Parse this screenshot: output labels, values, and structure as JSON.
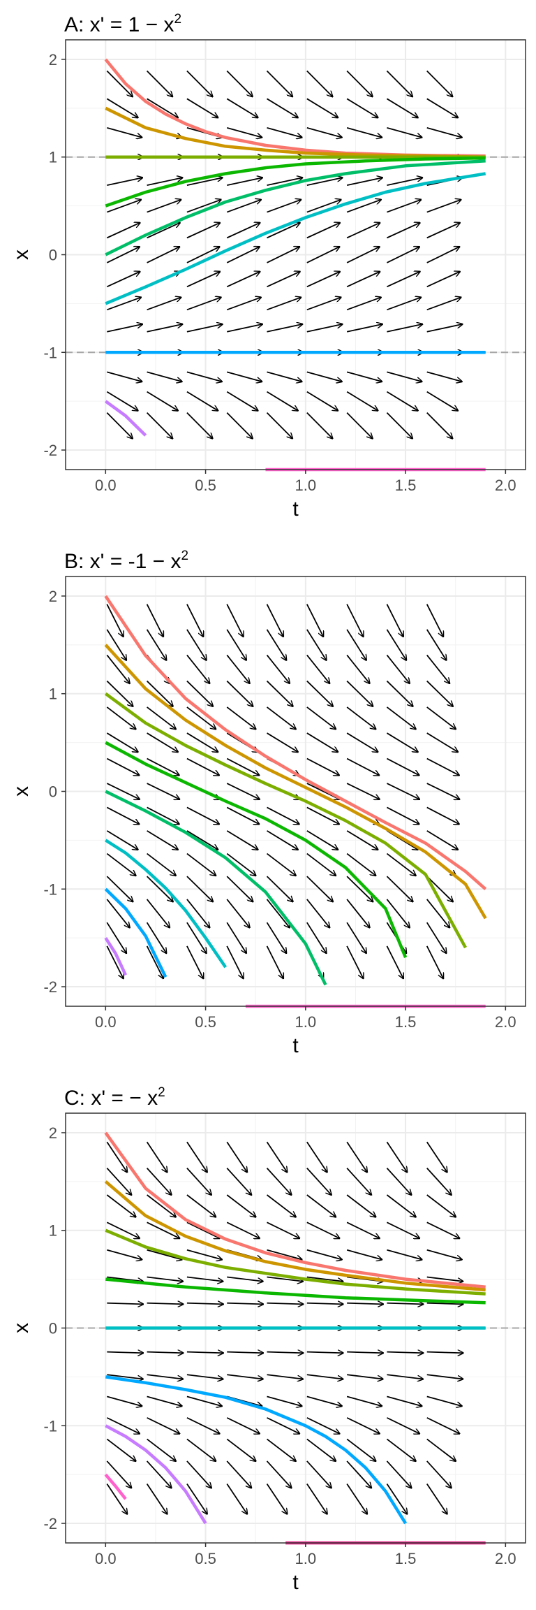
{
  "chart_data": [
    {
      "type": "line",
      "subtype": "direction-field",
      "title_base": "A: x' = 1 − x",
      "title_sup": "2",
      "xlabel": "t",
      "ylabel": "x",
      "xlim": [
        -0.2,
        2.1
      ],
      "ylim": [
        -2.2,
        2.2
      ],
      "xticks": [
        0,
        0.5,
        1,
        1.5,
        2
      ],
      "xtick_labels": [
        "0.0",
        "0.5",
        "1.0",
        "1.5",
        "2.0"
      ],
      "yticks": [
        -2,
        -1,
        0,
        1,
        2
      ],
      "ytick_labels": [
        "-2",
        "-1",
        "0",
        "1",
        "2"
      ],
      "grid": true,
      "field": "1-x^2",
      "equilibria": [
        1,
        -1
      ],
      "series": [
        {
          "color": "#F8766D",
          "x": [
            0,
            0.1,
            0.2,
            0.3,
            0.4,
            0.5,
            0.6,
            0.8,
            1.0,
            1.2,
            1.5,
            1.9
          ],
          "y": [
            2,
            1.75,
            1.57,
            1.44,
            1.34,
            1.26,
            1.2,
            1.12,
            1.07,
            1.04,
            1.02,
            1.01
          ]
        },
        {
          "color": "#CD9600",
          "x": [
            0,
            0.2,
            0.4,
            0.6,
            0.8,
            1.0,
            1.3,
            1.6,
            1.9
          ],
          "y": [
            1.5,
            1.3,
            1.19,
            1.11,
            1.07,
            1.04,
            1.02,
            1.01,
            1.0
          ]
        },
        {
          "color": "#7CAE00",
          "x": [
            0,
            1.9
          ],
          "y": [
            1,
            1
          ]
        },
        {
          "color": "#0CB702",
          "x": [
            0,
            0.2,
            0.4,
            0.6,
            0.8,
            1.0,
            1.3,
            1.6,
            1.9
          ],
          "y": [
            0.5,
            0.64,
            0.75,
            0.83,
            0.89,
            0.93,
            0.96,
            0.98,
            0.99
          ]
        },
        {
          "color": "#00BE67",
          "x": [
            0,
            0.2,
            0.4,
            0.6,
            0.8,
            1.0,
            1.2,
            1.5,
            1.9
          ],
          "y": [
            0,
            0.2,
            0.38,
            0.54,
            0.66,
            0.76,
            0.83,
            0.91,
            0.96
          ]
        },
        {
          "color": "#00BFC4",
          "x": [
            0,
            0.2,
            0.4,
            0.6,
            0.8,
            1.0,
            1.2,
            1.4,
            1.6,
            1.9
          ],
          "y": [
            -0.5,
            -0.33,
            -0.15,
            0.04,
            0.22,
            0.38,
            0.52,
            0.64,
            0.73,
            0.83
          ]
        },
        {
          "color": "#00A9FF",
          "x": [
            0,
            1.9
          ],
          "y": [
            -1,
            -1
          ]
        },
        {
          "color": "#C77CFF",
          "x": [
            0,
            0.1,
            0.2
          ],
          "y": [
            -1.5,
            -1.65,
            -1.85
          ]
        },
        {
          "color": "#FF61CC",
          "x": [
            0.8,
            1.9
          ],
          "y": [
            -2.2,
            -2.2
          ]
        }
      ]
    },
    {
      "type": "line",
      "subtype": "direction-field",
      "title_base": "B: x' = -1 − x",
      "title_sup": "2",
      "xlabel": "t",
      "ylabel": "x",
      "xlim": [
        -0.2,
        2.1
      ],
      "ylim": [
        -2.2,
        2.2
      ],
      "xticks": [
        0,
        0.5,
        1,
        1.5,
        2
      ],
      "xtick_labels": [
        "0.0",
        "0.5",
        "1.0",
        "1.5",
        "2.0"
      ],
      "yticks": [
        -2,
        -1,
        0,
        1,
        2
      ],
      "ytick_labels": [
        "-2",
        "-1",
        "0",
        "1",
        "2"
      ],
      "grid": true,
      "field": "-1-x^2",
      "equilibria": [],
      "series": [
        {
          "color": "#F8766D",
          "x": [
            0,
            0.2,
            0.4,
            0.6,
            0.8,
            1.0,
            1.2,
            1.4,
            1.6,
            1.8,
            1.9
          ],
          "y": [
            2,
            1.39,
            0.95,
            0.63,
            0.36,
            0.12,
            -0.1,
            -0.32,
            -0.53,
            -0.82,
            -1.0
          ]
        },
        {
          "color": "#CD9600",
          "x": [
            0,
            0.2,
            0.4,
            0.6,
            0.8,
            1.0,
            1.2,
            1.4,
            1.6,
            1.8,
            1.9
          ],
          "y": [
            1.5,
            1.05,
            0.73,
            0.47,
            0.24,
            0.04,
            -0.16,
            -0.38,
            -0.62,
            -0.95,
            -1.3
          ]
        },
        {
          "color": "#7CAE00",
          "x": [
            0,
            0.2,
            0.4,
            0.6,
            0.8,
            1.0,
            1.2,
            1.4,
            1.6,
            1.8
          ],
          "y": [
            1,
            0.7,
            0.47,
            0.27,
            0.08,
            -0.1,
            -0.3,
            -0.53,
            -0.85,
            -1.6
          ]
        },
        {
          "color": "#0CB702",
          "x": [
            0,
            0.2,
            0.4,
            0.6,
            0.8,
            1.0,
            1.2,
            1.4,
            1.5
          ],
          "y": [
            0.5,
            0.28,
            0.09,
            -0.1,
            -0.28,
            -0.5,
            -0.78,
            -1.2,
            -1.7
          ]
        },
        {
          "color": "#00BE67",
          "x": [
            0,
            0.2,
            0.4,
            0.6,
            0.8,
            1.0,
            1.1
          ],
          "y": [
            0,
            -0.2,
            -0.42,
            -0.68,
            -1.03,
            -1.56,
            -1.98
          ]
        },
        {
          "color": "#00BFC4",
          "x": [
            0,
            0.1,
            0.2,
            0.3,
            0.4,
            0.5,
            0.6
          ],
          "y": [
            -0.5,
            -0.63,
            -0.8,
            -0.99,
            -1.22,
            -1.5,
            -1.8
          ]
        },
        {
          "color": "#00A9FF",
          "x": [
            0,
            0.1,
            0.2,
            0.3
          ],
          "y": [
            -1,
            -1.2,
            -1.48,
            -1.9
          ]
        },
        {
          "color": "#C77CFF",
          "x": [
            0,
            0.05,
            0.1
          ],
          "y": [
            -1.5,
            -1.66,
            -1.88
          ]
        },
        {
          "color": "#FF61CC",
          "x": [
            0.7,
            1.9
          ],
          "y": [
            -2.2,
            -2.2
          ]
        }
      ]
    },
    {
      "type": "line",
      "subtype": "direction-field",
      "title_base": "C: x' = − x",
      "title_sup": "2",
      "xlabel": "t",
      "ylabel": "x",
      "xlim": [
        -0.2,
        2.1
      ],
      "ylim": [
        -2.2,
        2.2
      ],
      "xticks": [
        0,
        0.5,
        1,
        1.5,
        2
      ],
      "xtick_labels": [
        "0.0",
        "0.5",
        "1.0",
        "1.5",
        "2.0"
      ],
      "yticks": [
        -2,
        -1,
        0,
        1,
        2
      ],
      "ytick_labels": [
        "-2",
        "-1",
        "0",
        "1",
        "2"
      ],
      "grid": true,
      "field": "-x^2",
      "equilibria": [
        0
      ],
      "series": [
        {
          "color": "#F8766D",
          "x": [
            0,
            0.2,
            0.4,
            0.6,
            0.8,
            1.0,
            1.2,
            1.5,
            1.9
          ],
          "y": [
            2,
            1.43,
            1.11,
            0.91,
            0.77,
            0.67,
            0.59,
            0.5,
            0.42
          ]
        },
        {
          "color": "#CD9600",
          "x": [
            0,
            0.2,
            0.4,
            0.6,
            0.8,
            1.0,
            1.2,
            1.5,
            1.9
          ],
          "y": [
            1.5,
            1.15,
            0.94,
            0.79,
            0.68,
            0.6,
            0.54,
            0.46,
            0.39
          ]
        },
        {
          "color": "#7CAE00",
          "x": [
            0,
            0.2,
            0.4,
            0.6,
            0.8,
            1.0,
            1.2,
            1.5,
            1.9
          ],
          "y": [
            1,
            0.83,
            0.71,
            0.62,
            0.56,
            0.5,
            0.45,
            0.4,
            0.35
          ]
        },
        {
          "color": "#0CB702",
          "x": [
            0,
            0.4,
            0.8,
            1.2,
            1.6,
            1.9
          ],
          "y": [
            0.5,
            0.42,
            0.36,
            0.31,
            0.28,
            0.26
          ]
        },
        {
          "color": "#00BFC4",
          "x": [
            0,
            1.9
          ],
          "y": [
            0,
            0
          ]
        },
        {
          "color": "#00A9FF",
          "x": [
            0,
            0.2,
            0.4,
            0.6,
            0.8,
            1.0,
            1.1,
            1.2,
            1.3,
            1.4,
            1.5
          ],
          "y": [
            -0.5,
            -0.56,
            -0.63,
            -0.71,
            -0.83,
            -1.0,
            -1.11,
            -1.25,
            -1.43,
            -1.67,
            -2.0
          ]
        },
        {
          "color": "#C77CFF",
          "x": [
            0,
            0.1,
            0.2,
            0.3,
            0.4,
            0.5
          ],
          "y": [
            -1,
            -1.11,
            -1.25,
            -1.43,
            -1.67,
            -2.0
          ]
        },
        {
          "color": "#FF61CC",
          "x": [
            0,
            0.05,
            0.1
          ],
          "y": [
            -1.5,
            -1.62,
            -1.75
          ]
        },
        {
          "color": "#E7298A",
          "x": [
            0.9,
            1.9
          ],
          "y": [
            -2.2,
            -2.2
          ]
        }
      ]
    }
  ]
}
